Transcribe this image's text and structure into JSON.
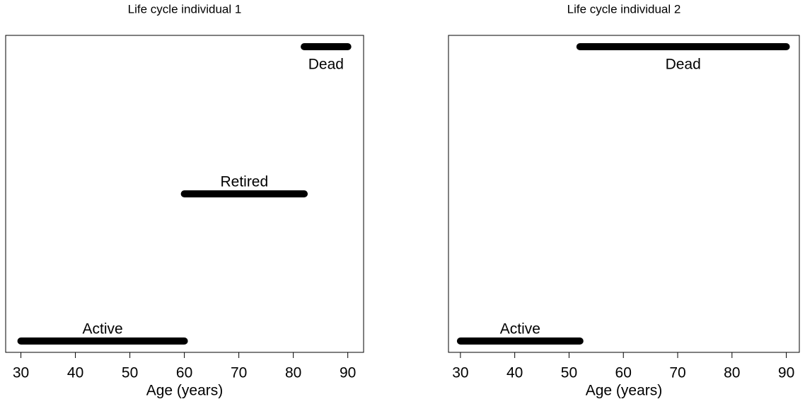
{
  "chart_data": [
    {
      "type": "segment",
      "title": "Life cycle individual 1",
      "xlabel": "Age (years)",
      "categories": [
        "Active",
        "Retired",
        "Dead"
      ],
      "start": [
        30,
        60,
        82
      ],
      "end": [
        60,
        82,
        90
      ],
      "color": "#000000",
      "xlim": [
        27.2,
        92.9
      ],
      "xticks": [
        30,
        40,
        50,
        60,
        70,
        80,
        90
      ]
    },
    {
      "type": "segment",
      "title": "Life cycle individual 2",
      "xlabel": "Age (years)",
      "categories": [
        "Active",
        null,
        "Dead"
      ],
      "start": [
        30,
        null,
        52
      ],
      "end": [
        52,
        null,
        90
      ],
      "color": "#000000",
      "xlim": [
        27.8,
        92.4
      ],
      "xticks": [
        30,
        40,
        50,
        60,
        70,
        80,
        90
      ]
    }
  ]
}
